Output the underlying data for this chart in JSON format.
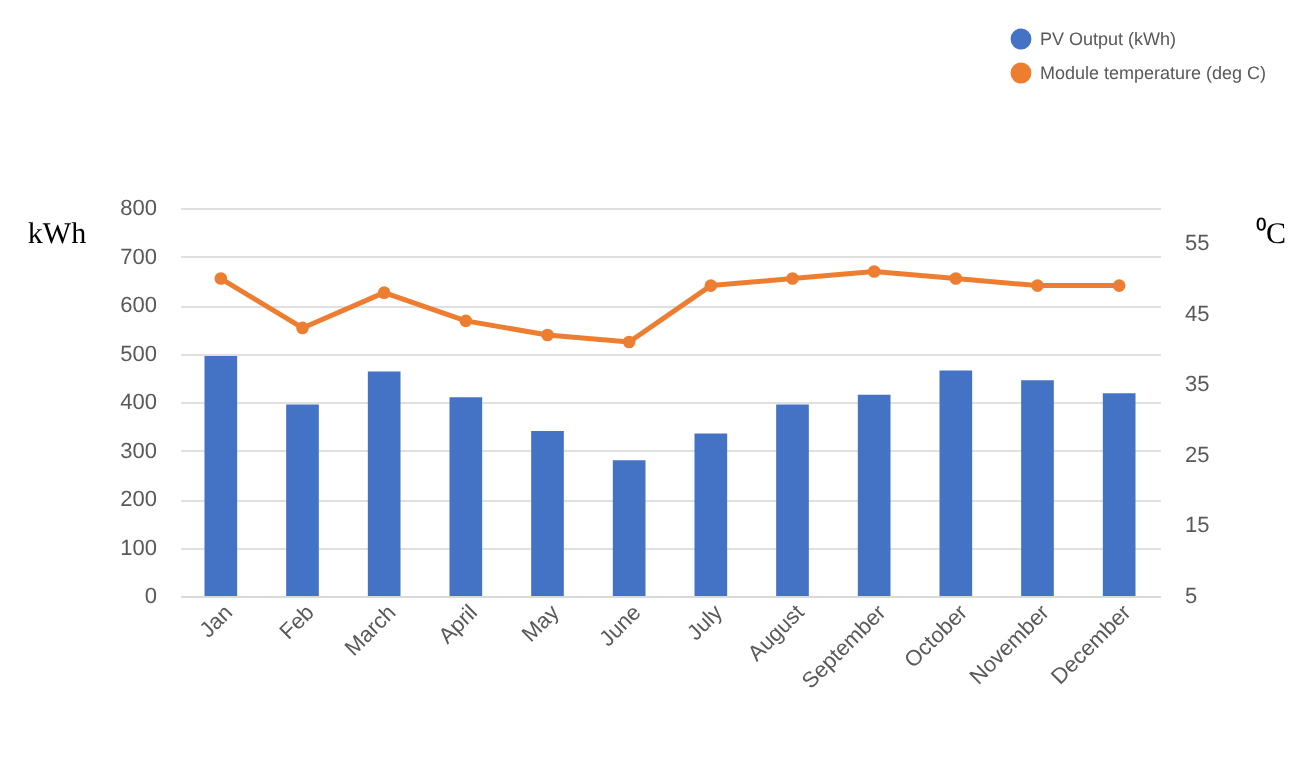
{
  "chart_data": {
    "type": "bar",
    "categories": [
      "Jan",
      "Feb",
      "March",
      "April",
      "May",
      "June",
      "July",
      "August",
      "September",
      "October",
      "November",
      "December"
    ],
    "series": [
      {
        "name": "PV Output (kWh)",
        "color": "#4472c4",
        "values": [
          495,
          395,
          463,
          410,
          340,
          280,
          335,
          395,
          415,
          465,
          445,
          418
        ]
      },
      {
        "name": "Module temperature (deg C)",
        "type": "line",
        "axis": "y2",
        "color": "#ed7d31",
        "values": [
          50,
          43,
          48,
          44,
          42,
          41,
          49,
          50,
          51,
          50,
          49,
          49
        ]
      }
    ],
    "ylabel": "kWh",
    "y2label": "⁰C",
    "ylim": [
      0,
      800
    ],
    "yticks": [
      0,
      100,
      200,
      300,
      400,
      500,
      600,
      700,
      800
    ],
    "y2lim": [
      5,
      60
    ],
    "y2ticks": [
      5,
      15,
      25,
      35,
      45,
      55
    ],
    "grid": "y",
    "legend": "top right",
    "marker": "circle",
    "line_style": "solid"
  }
}
